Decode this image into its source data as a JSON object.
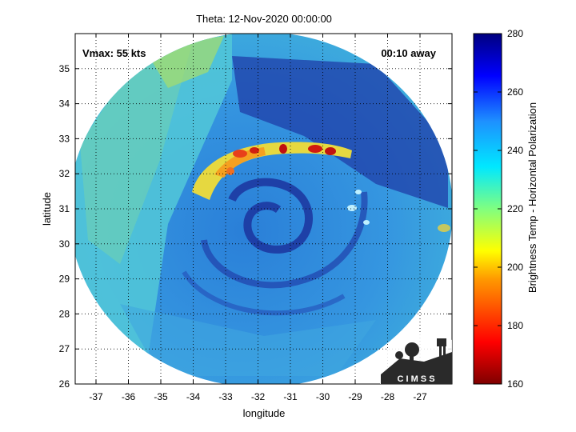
{
  "title": "Theta: 12-Nov-2020 00:00:00",
  "annotations": {
    "vmax": "Vmax: 55 kts",
    "away": "00:10 away"
  },
  "axes": {
    "xlabel": "longitude",
    "ylabel": "latitude",
    "xticks": [
      "-37",
      "-36",
      "-35",
      "-34",
      "-33",
      "-32",
      "-31",
      "-30",
      "-29",
      "-28",
      "-27"
    ],
    "yticks": [
      "26",
      "27",
      "28",
      "29",
      "30",
      "31",
      "32",
      "33",
      "34",
      "35"
    ]
  },
  "colorbar": {
    "label": "Brightness Temp - Horizontal Polarization",
    "ticks": [
      "160",
      "180",
      "200",
      "220",
      "240",
      "260",
      "280"
    ],
    "min": 160,
    "max": 280
  },
  "logo": {
    "text": "C I M S S"
  },
  "colors": {
    "scan_base": "#2f8fdc",
    "cold_cloud": "#f2c020",
    "very_cold": "#c81a10",
    "warm_band": "#1e2fa8"
  }
}
